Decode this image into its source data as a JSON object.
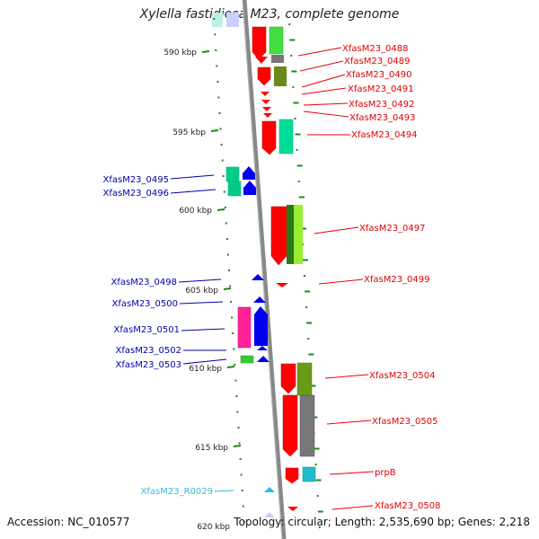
{
  "title": "Xylella fastidiosa M23, complete genome",
  "footer": {
    "accession": "Accession: NC_010577",
    "summary": "Topology: circular; Length: 2,535,690 bp; Genes: 2,218"
  },
  "scale_labels": [
    "590 kbp",
    "595 kbp",
    "600 kbp",
    "605 kbp",
    "610 kbp",
    "615 kbp",
    "620 kbp"
  ],
  "right_genes": [
    "XfasM23_0488",
    "XfasM23_0489",
    "XfasM23_0490",
    "XfasM23_0491",
    "XfasM23_0492",
    "XfasM23_0493",
    "XfasM23_0494",
    "XfasM23_0497",
    "XfasM23_0499",
    "XfasM23_0504",
    "XfasM23_0505",
    "prpB",
    "XfasM23_0508"
  ],
  "left_genes": [
    "XfasM23_0495",
    "XfasM23_0496",
    "XfasM23_0498",
    "XfasM23_0500",
    "XfasM23_0501",
    "XfasM23_0502",
    "XfasM23_0503",
    "XfasM23_R0029"
  ],
  "colors": {
    "forward_label": "#e00000",
    "reverse_label": "#0000aa",
    "rna_label": "#33bbdd",
    "backbone": "#888888",
    "tick": "#1a8a1a",
    "gene_red": "#ff0000",
    "gene_blue": "#0000ee",
    "gene_green": "#44dd44",
    "gene_olive": "#6a8a1a",
    "gene_teal": "#00cc88",
    "gene_gray": "#777777",
    "gene_magenta": "#ff2299",
    "gene_cyan": "#22bbcc"
  }
}
